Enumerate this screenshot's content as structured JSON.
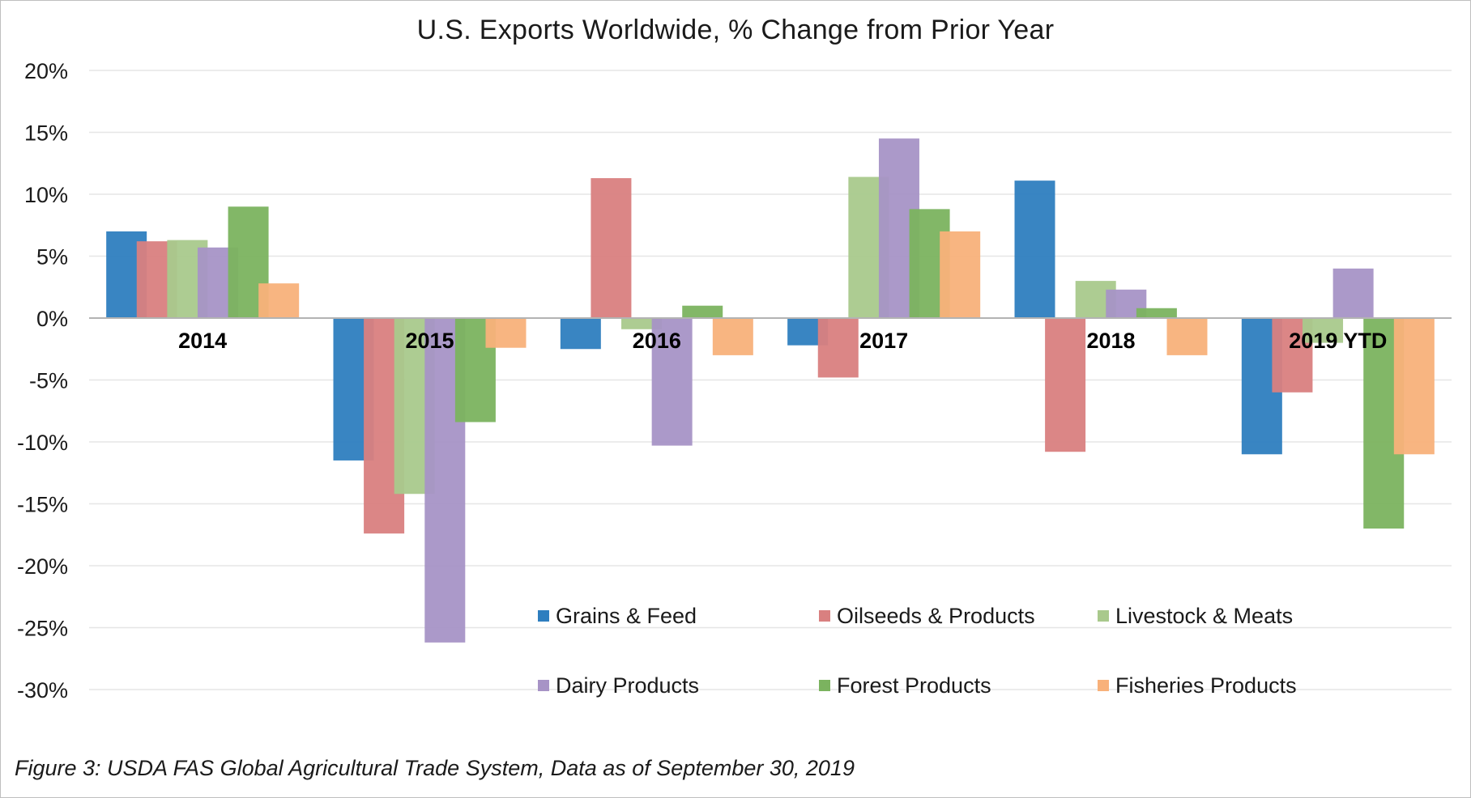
{
  "chart_data": {
    "type": "bar",
    "title": "U.S. Exports Worldwide, % Change from Prior Year",
    "caption": "Figure 3: USDA FAS Global Agricultural Trade System, Data as of September 30, 2019",
    "categories": [
      "2014",
      "2015",
      "2016",
      "2017",
      "2018",
      "2019 YTD"
    ],
    "yunit": "%",
    "ylim": [
      -30,
      20
    ],
    "yticks": [
      20,
      15,
      10,
      5,
      0,
      -5,
      -10,
      -15,
      -20,
      -25,
      -30
    ],
    "grid": true,
    "legend_placement": "bottom-center",
    "series": [
      {
        "name": "Grains & Feed",
        "color": "#2e7ebf",
        "values": [
          7.0,
          -11.5,
          -2.5,
          -2.2,
          11.1,
          -11.0
        ]
      },
      {
        "name": "Oilseeds & Products",
        "color": "#d98080",
        "values": [
          6.2,
          -17.4,
          11.3,
          -4.8,
          -10.8,
          -6.0
        ]
      },
      {
        "name": "Livestock & Meats",
        "color": "#a9c98c",
        "values": [
          6.3,
          -14.2,
          -0.9,
          11.4,
          3.0,
          -2.0
        ]
      },
      {
        "name": "Dairy Products",
        "color": "#a793c6",
        "values": [
          5.7,
          -26.2,
          -10.3,
          14.5,
          2.3,
          4.0
        ]
      },
      {
        "name": "Forest Products",
        "color": "#7bb35f",
        "values": [
          9.0,
          -8.4,
          1.0,
          8.8,
          0.8,
          -17.0
        ]
      },
      {
        "name": "Fisheries Products",
        "color": "#f8b17a",
        "values": [
          2.8,
          -2.4,
          -3.0,
          7.0,
          -3.0,
          -11.0
        ]
      }
    ]
  }
}
